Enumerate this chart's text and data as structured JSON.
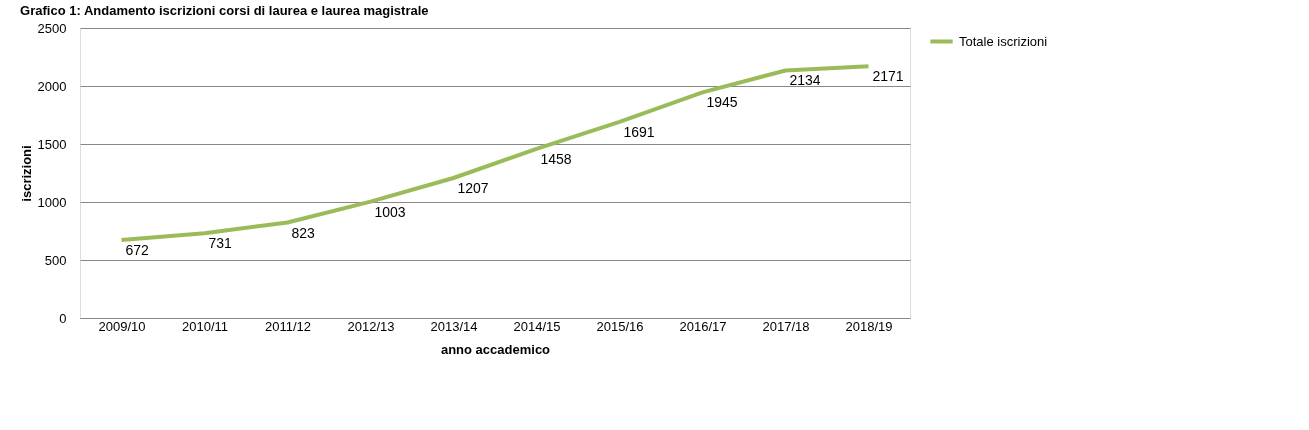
{
  "chart_data": {
    "type": "line",
    "title": "Grafico 1: Andamento iscrizioni corsi di laurea e laurea magistrale",
    "xlabel": "anno accademico",
    "ylabel": "iscrizioni",
    "categories": [
      "2009/10",
      "2010/11",
      "2011/12",
      "2012/13",
      "2013/14",
      "2014/15",
      "2015/16",
      "2016/17",
      "2017/18",
      "2018/19"
    ],
    "series": [
      {
        "name": "Totale iscrizioni",
        "color": "#9bbb59",
        "values": [
          672,
          731,
          823,
          1003,
          1207,
          1458,
          1691,
          1945,
          2134,
          2171
        ]
      }
    ],
    "ylim": [
      0,
      2500
    ],
    "yticks": [
      0,
      500,
      1000,
      1500,
      2000,
      2500
    ],
    "grid": "y",
    "legend": "right",
    "data_labels": true,
    "marker": "none",
    "line_style": "solid"
  }
}
